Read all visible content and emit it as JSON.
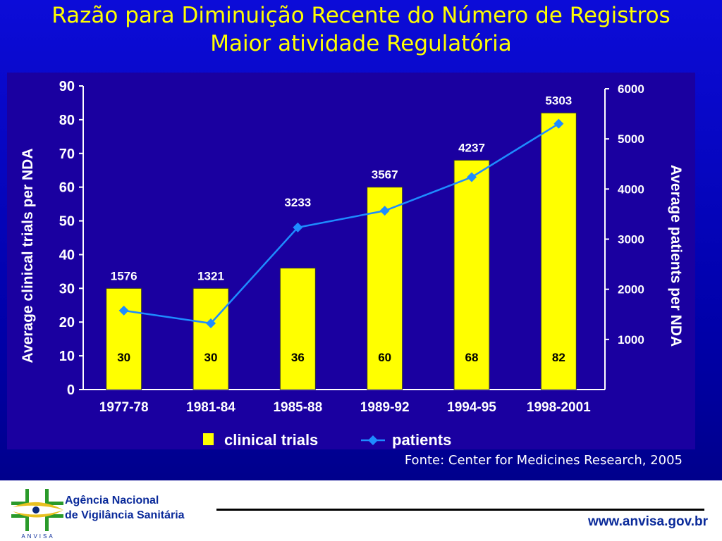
{
  "slide": {
    "title_line1": "Razão para Diminuição Recente do Número de Registros",
    "title_line2": "Maior atividade Regulatória",
    "source": "Fonte: Center for Medicines Research, 2005"
  },
  "footer": {
    "org_line1": "Agência Nacional",
    "org_line2": "de Vigilância Sanitária",
    "logo_text": "ANVISA",
    "url": "www.anvisa.gov.br"
  },
  "colors": {
    "bar": "#ffff00",
    "line": "#1e8cff",
    "text": "#ffffff"
  },
  "chart_data": {
    "type": "bar",
    "categories": [
      "1977-78",
      "1981-84",
      "1985-88",
      "1989-92",
      "1994-95",
      "1998-2001"
    ],
    "series": [
      {
        "name": "clinical trials",
        "type": "bar",
        "axis": "left",
        "values": [
          30,
          30,
          36,
          60,
          68,
          82
        ]
      },
      {
        "name": "patients",
        "type": "line",
        "axis": "right",
        "values": [
          1576,
          1321,
          3233,
          3567,
          4237,
          5303
        ]
      }
    ],
    "ylabel": "Average clinical trials per NDA",
    "y2label": "Average patients per NDA",
    "ylim": [
      0,
      90
    ],
    "y2lim": [
      0,
      6000
    ],
    "yticks": [
      0,
      10,
      20,
      30,
      40,
      50,
      60,
      70,
      80,
      90
    ],
    "y2ticks": [
      1000,
      2000,
      3000,
      4000,
      5000,
      6000
    ],
    "legend_position": "bottom"
  }
}
